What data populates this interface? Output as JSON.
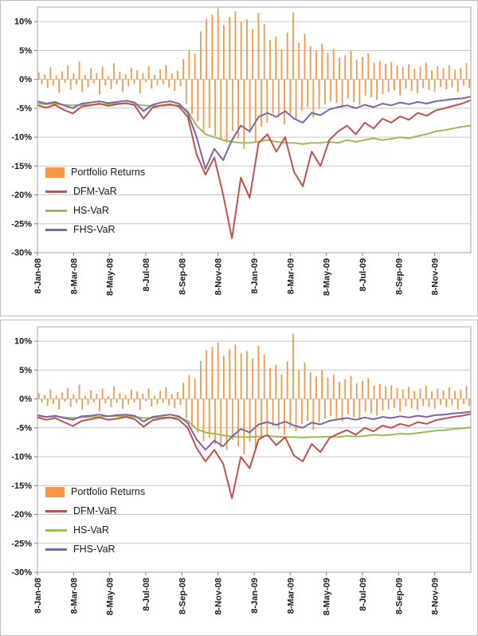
{
  "colors": {
    "returns": "#F79646",
    "dfm": "#C0504D",
    "hs": "#9BBB59",
    "fhs": "#8064A2",
    "grid": "#C6C6C6",
    "border": "#A6A6A6",
    "axis": "#7f7f7f"
  },
  "legend": {
    "items": [
      {
        "label": "Portfolio Returns",
        "color_key": "returns",
        "type": "bar"
      },
      {
        "label": "DFM-VaR",
        "color_key": "dfm",
        "type": "line"
      },
      {
        "label": "HS-VaR",
        "color_key": "hs",
        "type": "line"
      },
      {
        "label": "FHS-VaR",
        "color_key": "fhs",
        "type": "line"
      }
    ]
  },
  "chart_data": [
    {
      "type": "bar+line",
      "panel": "top",
      "title": "",
      "xlabel": "",
      "ylabel": "",
      "y_axis": {
        "max": 12.5,
        "min": -30,
        "tick_values": [
          10,
          5,
          0,
          -5,
          -10,
          -15,
          -20,
          -25,
          -30
        ],
        "tick_labels": [
          "10%",
          "5%",
          "0%",
          "-5%",
          "-10%",
          "-15%",
          "-20%",
          "-25%",
          "-30%"
        ]
      },
      "x_axis": {
        "total_months": 24,
        "tick_months": [
          0,
          2,
          4,
          6,
          8,
          10,
          12,
          14,
          16,
          18,
          20,
          22
        ],
        "tick_labels": [
          "8-Jan-08",
          "8-Mar-08",
          "8-May-08",
          "8-Jul-08",
          "8-Sep-08",
          "8-Nov-08",
          "8-Jan-09",
          "8-Mar-09",
          "8-May-09",
          "8-Jul-09",
          "8-Sep-09",
          "8-Nov-09"
        ]
      },
      "bar_series": {
        "name": "Portfolio Returns",
        "values": [
          1.2,
          -0.8,
          0.9,
          -1.5,
          2.1,
          -1.1,
          0.7,
          -2.3,
          1.4,
          -0.6,
          2.4,
          -1.8,
          1.0,
          -0.9,
          3.1,
          -2.2,
          0.8,
          -1.3,
          1.9,
          -0.7,
          1.1,
          -2.6,
          2.2,
          -1.0,
          0.6,
          -1.7,
          2.8,
          -0.9,
          1.3,
          -2.1,
          0.9,
          -1.2,
          2.0,
          -0.8,
          1.6,
          -2.4,
          1.1,
          -0.5,
          2.3,
          -1.6,
          0.8,
          -1.1,
          1.7,
          -0.9,
          2.5,
          -1.4,
          1.0,
          -2.0,
          1.5,
          -1.2,
          3.5,
          -4.2,
          5.1,
          -6.0,
          4.4,
          -7.2,
          8.3,
          -9.1,
          10.5,
          -8.4,
          11.2,
          -9.8,
          12.3,
          -10.5,
          9.4,
          -11.0,
          10.8,
          -8.9,
          11.8,
          -10.2,
          9.9,
          -12.0,
          10.4,
          -9.3,
          8.7,
          -10.8,
          11.5,
          -8.2,
          9.6,
          -7.5,
          6.8,
          -5.9,
          7.4,
          -6.5,
          5.2,
          -7.8,
          8.1,
          -6.1,
          11.6,
          -7.0,
          6.3,
          -5.4,
          7.9,
          -4.8,
          5.7,
          -6.6,
          4.9,
          -5.1,
          6.2,
          -4.3,
          4.6,
          -3.8,
          5.3,
          -4.1,
          3.7,
          -4.9,
          4.2,
          -3.3,
          5.0,
          -3.9,
          3.4,
          -4.4,
          3.9,
          -2.8,
          4.5,
          -3.1,
          2.9,
          -3.6,
          3.2,
          -2.5,
          2.7,
          -2.2,
          3.0,
          -1.9,
          2.4,
          -2.8,
          2.1,
          -1.6,
          2.6,
          -2.0,
          1.8,
          -2.4,
          2.2,
          -1.5,
          2.9,
          -1.8,
          1.6,
          -2.1,
          2.3,
          -1.3,
          1.9,
          -1.7,
          2.5,
          -1.4,
          1.7,
          -2.2,
          2.0,
          -1.1,
          2.8,
          -1.5
        ]
      },
      "line_series": [
        {
          "name": "HS-VaR",
          "key": "hs",
          "values": [
            -4.2,
            -4.3,
            -4.2,
            -4.4,
            -4.5,
            -4.4,
            -4.4,
            -4.3,
            -4.3,
            -4.2,
            -4.2,
            -4.3,
            -4.5,
            -4.6,
            -4.6,
            -4.5,
            -4.5,
            -5.5,
            -8.0,
            -9.5,
            -10.0,
            -10.5,
            -10.8,
            -11.0,
            -11.0,
            -10.8,
            -10.5,
            -10.8,
            -11.0,
            -11.0,
            -11.2,
            -11.0,
            -11.0,
            -10.8,
            -11.0,
            -10.5,
            -10.8,
            -10.5,
            -10.2,
            -10.5,
            -10.3,
            -10.0,
            -10.2,
            -9.8,
            -9.5,
            -9.0,
            -8.8,
            -8.5,
            -8.2,
            -8.0
          ]
        },
        {
          "name": "DFM-VaR",
          "key": "dfm",
          "values": [
            -4.5,
            -4.9,
            -4.4,
            -5.3,
            -5.9,
            -4.7,
            -4.5,
            -4.2,
            -4.6,
            -4.3,
            -4.1,
            -4.5,
            -6.8,
            -4.9,
            -4.5,
            -4.3,
            -4.7,
            -6.5,
            -13.0,
            -16.5,
            -13.5,
            -20.0,
            -27.5,
            -17.0,
            -20.5,
            -11.0,
            -9.5,
            -12.5,
            -10.0,
            -16.0,
            -18.5,
            -12.5,
            -15.0,
            -10.5,
            -9.0,
            -8.0,
            -9.5,
            -7.5,
            -8.5,
            -6.8,
            -7.5,
            -6.4,
            -7.0,
            -5.8,
            -6.3,
            -5.4,
            -5.0,
            -4.6,
            -4.2,
            -3.6
          ]
        },
        {
          "name": "FHS-VaR",
          "key": "fhs",
          "values": [
            -3.8,
            -4.2,
            -3.9,
            -4.5,
            -5.0,
            -4.2,
            -4.0,
            -3.8,
            -4.1,
            -3.9,
            -3.7,
            -4.0,
            -5.5,
            -4.4,
            -4.0,
            -3.8,
            -4.2,
            -5.8,
            -10.0,
            -15.5,
            -12.0,
            -14.0,
            -10.5,
            -8.0,
            -9.0,
            -6.5,
            -5.8,
            -6.5,
            -5.5,
            -6.8,
            -7.5,
            -5.8,
            -6.2,
            -5.2,
            -4.8,
            -4.5,
            -5.0,
            -4.4,
            -4.8,
            -4.2,
            -4.5,
            -4.0,
            -4.3,
            -3.9,
            -4.2,
            -3.8,
            -3.6,
            -3.4,
            -3.3,
            -3.0
          ]
        }
      ]
    },
    {
      "type": "bar+line",
      "panel": "bottom",
      "title": "",
      "xlabel": "",
      "ylabel": "",
      "y_axis": {
        "max": 12.5,
        "min": -30,
        "tick_values": [
          10,
          5,
          0,
          -5,
          -10,
          -15,
          -20,
          -25,
          -30
        ],
        "tick_labels": [
          "10%",
          "5%",
          "0%",
          "-5%",
          "-10%",
          "-15%",
          "-20%",
          "-25%",
          "-30%"
        ]
      },
      "x_axis": {
        "total_months": 24,
        "tick_months": [
          0,
          2,
          4,
          6,
          8,
          10,
          12,
          14,
          16,
          18,
          20,
          22
        ],
        "tick_labels": [
          "8-Jan-08",
          "8-Mar-08",
          "8-May-08",
          "8-Jul-08",
          "8-Sep-08",
          "8-Nov-08",
          "8-Jan-09",
          "8-Mar-09",
          "8-May-09",
          "8-Jul-09",
          "8-Sep-09",
          "8-Nov-09"
        ]
      },
      "bar_series": {
        "name": "Portfolio Returns",
        "values": [
          1.0,
          -0.6,
          0.7,
          -1.2,
          1.7,
          -0.9,
          0.6,
          -1.8,
          1.1,
          -0.5,
          1.9,
          -1.4,
          0.8,
          -0.7,
          2.5,
          -1.8,
          0.6,
          -1.0,
          1.5,
          -0.6,
          0.9,
          -2.1,
          1.8,
          -0.8,
          0.5,
          -1.4,
          2.2,
          -0.7,
          1.0,
          -1.7,
          0.7,
          -1.0,
          1.6,
          -0.6,
          1.3,
          -1.9,
          0.9,
          -0.4,
          1.8,
          -1.3,
          0.6,
          -0.9,
          1.4,
          -0.7,
          2.0,
          -1.1,
          0.8,
          -1.6,
          1.2,
          -1.0,
          2.8,
          -3.4,
          4.1,
          -4.8,
          3.5,
          -5.8,
          6.6,
          -7.3,
          8.4,
          -6.7,
          9.0,
          -7.8,
          9.8,
          -8.4,
          7.5,
          -8.8,
          8.6,
          -7.1,
          9.4,
          -8.2,
          7.9,
          -9.6,
          8.3,
          -7.4,
          7.0,
          -8.6,
          9.2,
          -6.6,
          7.7,
          -6.0,
          5.4,
          -4.7,
          5.9,
          -5.2,
          4.2,
          -6.2,
          6.5,
          -4.9,
          11.3,
          -5.6,
          5.0,
          -4.3,
          6.3,
          -3.8,
          4.6,
          -5.3,
          3.9,
          -4.1,
          5.0,
          -3.4,
          3.7,
          -3.0,
          4.2,
          -3.3,
          3.0,
          -3.9,
          3.4,
          -2.6,
          4.0,
          -3.1,
          2.7,
          -3.5,
          3.1,
          -2.2,
          3.6,
          -2.5,
          2.3,
          -2.9,
          2.6,
          -2.0,
          2.2,
          -1.8,
          2.4,
          -1.5,
          1.9,
          -2.2,
          1.7,
          -1.3,
          2.1,
          -1.6,
          1.4,
          -1.9,
          1.8,
          -1.2,
          2.3,
          -1.4,
          1.3,
          -1.7,
          1.8,
          -1.0,
          1.5,
          -1.4,
          2.0,
          -1.1,
          1.4,
          -1.8,
          1.6,
          -0.9,
          2.2,
          -1.2
        ]
      },
      "line_series": [
        {
          "name": "HS-VaR",
          "key": "hs",
          "values": [
            -3.0,
            -3.1,
            -3.0,
            -3.2,
            -3.3,
            -3.2,
            -3.1,
            -3.1,
            -3.0,
            -3.0,
            -3.0,
            -3.1,
            -3.3,
            -3.3,
            -3.2,
            -3.2,
            -3.2,
            -3.8,
            -5.2,
            -5.8,
            -6.0,
            -6.3,
            -6.5,
            -6.6,
            -6.6,
            -6.5,
            -6.4,
            -6.5,
            -6.6,
            -6.6,
            -6.7,
            -6.6,
            -6.6,
            -6.5,
            -6.6,
            -6.4,
            -6.5,
            -6.4,
            -6.2,
            -6.3,
            -6.2,
            -6.0,
            -6.1,
            -5.9,
            -5.7,
            -5.5,
            -5.4,
            -5.2,
            -5.1,
            -4.9
          ]
        },
        {
          "name": "DFM-VaR",
          "key": "dfm",
          "values": [
            -3.2,
            -3.6,
            -3.3,
            -4.0,
            -4.7,
            -3.8,
            -3.5,
            -3.2,
            -3.6,
            -3.4,
            -3.1,
            -3.5,
            -4.8,
            -3.7,
            -3.4,
            -3.2,
            -3.6,
            -5.0,
            -8.5,
            -10.8,
            -8.8,
            -11.2,
            -17.2,
            -10.0,
            -12.0,
            -7.0,
            -6.2,
            -8.0,
            -6.6,
            -9.8,
            -10.8,
            -7.8,
            -9.2,
            -6.8,
            -6.0,
            -5.4,
            -6.2,
            -5.0,
            -5.6,
            -4.6,
            -5.0,
            -4.3,
            -4.7,
            -4.0,
            -4.3,
            -3.7,
            -3.4,
            -3.1,
            -2.9,
            -2.6
          ]
        },
        {
          "name": "FHS-VaR",
          "key": "fhs",
          "values": [
            -2.8,
            -3.1,
            -2.9,
            -3.3,
            -3.6,
            -3.0,
            -2.9,
            -2.7,
            -3.0,
            -2.8,
            -2.7,
            -2.9,
            -3.9,
            -3.1,
            -2.9,
            -2.7,
            -3.0,
            -4.2,
            -7.0,
            -8.8,
            -7.2,
            -8.2,
            -6.5,
            -5.2,
            -5.8,
            -4.4,
            -4.0,
            -4.5,
            -3.9,
            -4.6,
            -5.0,
            -4.1,
            -4.4,
            -3.8,
            -3.5,
            -3.3,
            -3.6,
            -3.2,
            -3.5,
            -3.1,
            -3.3,
            -3.0,
            -3.2,
            -2.9,
            -3.1,
            -2.8,
            -2.7,
            -2.5,
            -2.4,
            -2.2
          ]
        }
      ]
    }
  ]
}
